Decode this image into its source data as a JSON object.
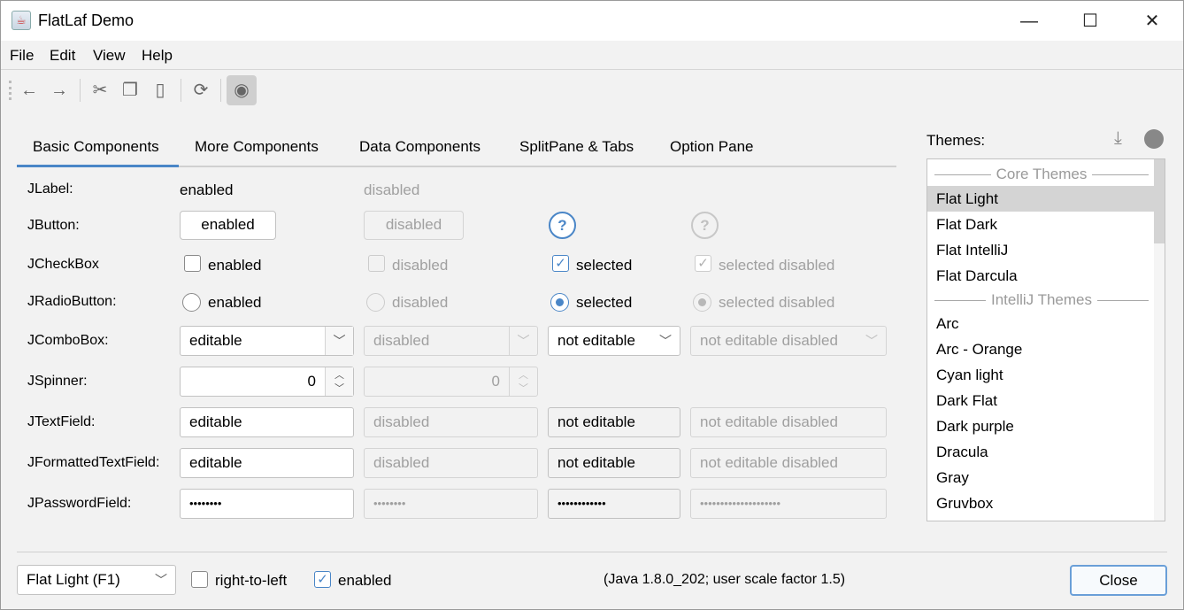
{
  "window": {
    "title": "FlatLaf Demo",
    "minimize": "—",
    "maximize": "☐",
    "close": "✕"
  },
  "menu": [
    "File",
    "Edit",
    "View",
    "Help"
  ],
  "toolbar": {
    "icons": [
      "arrow-left-icon",
      "arrow-right-icon",
      "cut-icon",
      "copy-icon",
      "paste-icon",
      "refresh-icon",
      "eye-icon"
    ]
  },
  "tabs": [
    "Basic Components",
    "More Components",
    "Data Components",
    "SplitPane & Tabs",
    "Option Pane"
  ],
  "selected_tab": "Basic Components",
  "accent": "#4a86c7",
  "rows": {
    "label": {
      "label": "JLabel:",
      "enabled": "enabled",
      "disabled": "disabled"
    },
    "button": {
      "label": "JButton:",
      "enabled": "enabled",
      "disabled": "disabled",
      "help": "?"
    },
    "checkbox": {
      "label": "JCheckBox",
      "enabled": "enabled",
      "disabled": "disabled",
      "selected": "selected",
      "selected_disabled": "selected disabled"
    },
    "radio": {
      "label": "JRadioButton:",
      "enabled": "enabled",
      "disabled": "disabled",
      "selected": "selected",
      "selected_disabled": "selected disabled"
    },
    "combo": {
      "label": "JComboBox:",
      "editable": "editable",
      "disabled": "disabled",
      "not_editable": "not editable",
      "not_editable_disabled": "not editable disabled"
    },
    "spinner": {
      "label": "JSpinner:",
      "enabled": "0",
      "disabled": "0"
    },
    "textfield": {
      "label": "JTextField:",
      "editable": "editable",
      "disabled": "disabled",
      "not_editable": "not editable",
      "not_editable_disabled": "not editable disabled"
    },
    "formatted": {
      "label": "JFormattedTextField:",
      "editable": "editable",
      "disabled": "disabled",
      "not_editable": "not editable",
      "not_editable_disabled": "not editable disabled"
    },
    "password": {
      "label": "JPasswordField:",
      "editable": "••••••••",
      "disabled": "••••••••",
      "not_editable": "••••••••••••",
      "not_editable_disabled": "••••••••••••••••••••"
    }
  },
  "themes": {
    "label": "Themes:",
    "groups": [
      "Core Themes",
      "IntelliJ Themes"
    ],
    "core": [
      "Flat Light",
      "Flat Dark",
      "Flat IntelliJ",
      "Flat Darcula"
    ],
    "intellij": [
      "Arc",
      "Arc - Orange",
      "Cyan light",
      "Dark Flat",
      "Dark purple",
      "Dracula",
      "Gray",
      "Gruvbox"
    ],
    "selected": "Flat Light"
  },
  "bottom": {
    "theme_combo": "Flat Light (F1)",
    "rtl": "right-to-left",
    "rtl_checked": false,
    "enabled": "enabled",
    "enabled_checked": true,
    "info": "(Java 1.8.0_202;  user scale factor 1.5)",
    "close": "Close"
  }
}
